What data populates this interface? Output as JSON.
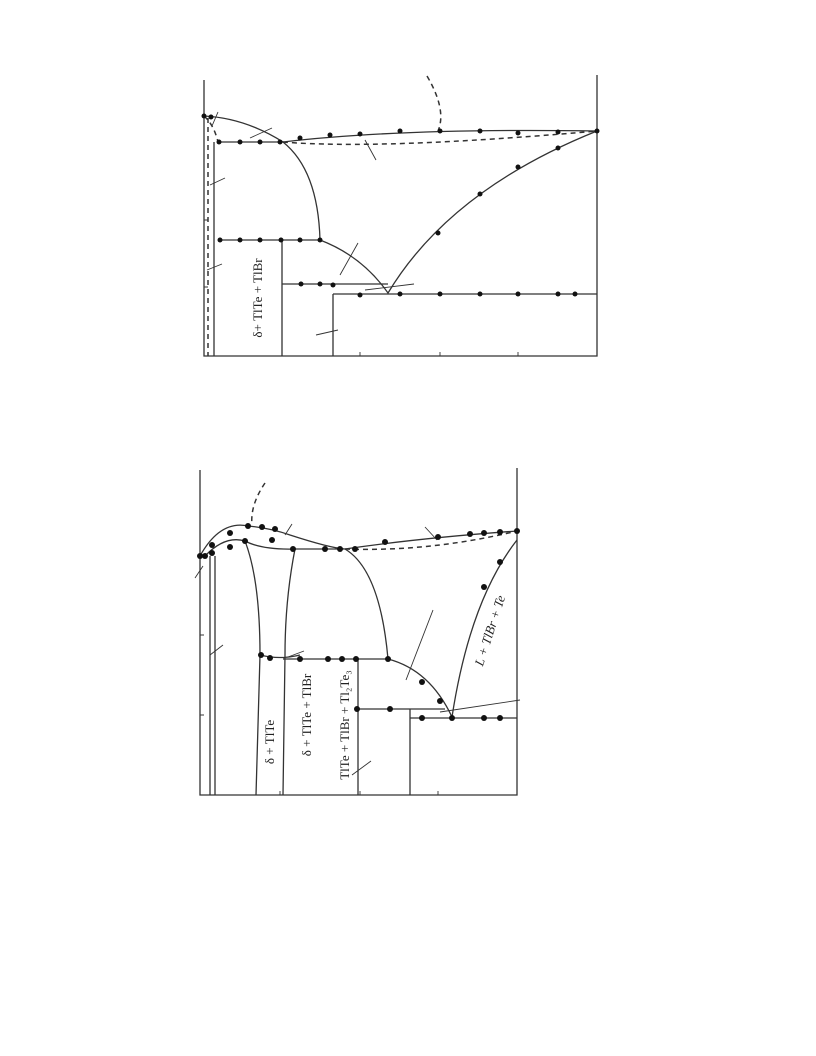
{
  "diagram_top": {
    "labels": [
      "δ+ TlTe + TlBr"
    ]
  },
  "diagram_bottom": {
    "labels": [
      "δ + TlTe",
      "δ + TlTe + TlBr",
      "TlTe + TlBr + Tl₂Te₃",
      "L + TlBr + Te"
    ]
  }
}
